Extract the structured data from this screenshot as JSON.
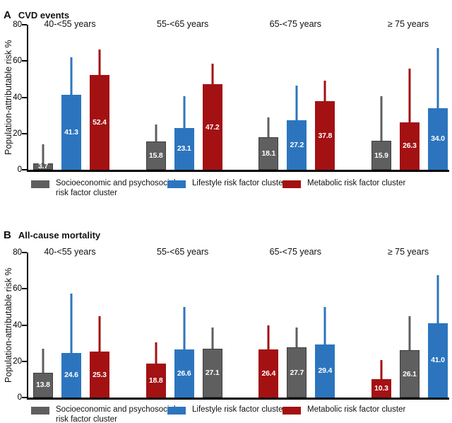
{
  "colors": {
    "gray": "#5f5f5f",
    "blue": "#2C75BE",
    "red": "#A31113",
    "axis": "#000000",
    "bar_label_text": "#ffffff"
  },
  "legend": [
    {
      "color_key": "gray",
      "line1": "Socioeconomic and psychosocial",
      "line2": "risk factor cluster",
      "label": "Socioeconomic and psychosocial risk factor cluster"
    },
    {
      "color_key": "blue",
      "line1": "Lifestyle risk factor cluster",
      "line2": "",
      "label": "Lifestyle risk factor cluster"
    },
    {
      "color_key": "red",
      "line1": "Metabolic risk factor cluster",
      "line2": "",
      "label": "Metabolic risk factor cluster"
    }
  ],
  "chart_data": [
    {
      "type": "bar",
      "panel_label": "A",
      "title": "CVD events",
      "ylabel": "Population-attributable risk %",
      "ylim": [
        0,
        80
      ],
      "yticks": [
        0,
        20,
        40,
        60,
        80
      ],
      "grid": false,
      "legend_position": "bottom",
      "error_bars": "upper whisker only; tops estimated from axis",
      "categories": [
        "40-<55 years",
        "55-<65 years",
        "65-<75 years",
        "≥ 75 years"
      ],
      "groups": [
        {
          "category": "40-<55 years",
          "bars": [
            {
              "cluster": "Socioeconomic and psychosocial risk factor cluster",
              "color_key": "gray",
              "value": 3.7,
              "label": "3.7",
              "err_top": 14
            },
            {
              "cluster": "Lifestyle risk factor cluster",
              "color_key": "blue",
              "value": 41.3,
              "label": "41.3",
              "err_top": 62
            },
            {
              "cluster": "Metabolic risk factor cluster",
              "color_key": "red",
              "value": 52.4,
              "label": "52.4",
              "err_top": 66.5
            }
          ]
        },
        {
          "category": "55-<65 years",
          "bars": [
            {
              "cluster": "Socioeconomic and psychosocial risk factor cluster",
              "color_key": "gray",
              "value": 15.8,
              "label": "15.8",
              "err_top": 25
            },
            {
              "cluster": "Lifestyle risk factor cluster",
              "color_key": "blue",
              "value": 23.1,
              "label": "23.1",
              "err_top": 40.5
            },
            {
              "cluster": "Metabolic risk factor cluster",
              "color_key": "red",
              "value": 47.2,
              "label": "47.2",
              "err_top": 58.5
            }
          ]
        },
        {
          "category": "65-<75 years",
          "bars": [
            {
              "cluster": "Socioeconomic and psychosocial risk factor cluster",
              "color_key": "gray",
              "value": 18.1,
              "label": "18.1",
              "err_top": 29
            },
            {
              "cluster": "Lifestyle risk factor cluster",
              "color_key": "blue",
              "value": 27.2,
              "label": "27.2",
              "err_top": 46.5
            },
            {
              "cluster": "Metabolic risk factor cluster",
              "color_key": "red",
              "value": 37.8,
              "label": "37.8",
              "err_top": 49
            }
          ]
        },
        {
          "category": "≥ 75 years",
          "bars": [
            {
              "cluster": "Socioeconomic and psychosocial risk factor cluster",
              "color_key": "gray",
              "value": 15.9,
              "label": "15.9",
              "err_top": 40.5
            },
            {
              "cluster": "Metabolic risk factor cluster",
              "color_key": "red",
              "value": 26.3,
              "label": "26.3",
              "err_top": 56
            },
            {
              "cluster": "Lifestyle risk factor cluster",
              "color_key": "blue",
              "value": 34.0,
              "label": "34.0",
              "err_top": 67
            }
          ]
        }
      ]
    },
    {
      "type": "bar",
      "panel_label": "B",
      "title": "All-cause mortality",
      "ylabel": "Population-attributable risk %",
      "ylim": [
        0,
        80
      ],
      "yticks": [
        0,
        20,
        40,
        60,
        80
      ],
      "grid": false,
      "legend_position": "bottom",
      "error_bars": "upper whisker only; tops estimated from axis",
      "categories": [
        "40-<55 years",
        "55-<65 years",
        "65-<75 years",
        "≥ 75 years"
      ],
      "groups": [
        {
          "category": "40-<55 years",
          "bars": [
            {
              "cluster": "Socioeconomic and psychosocial risk factor cluster",
              "color_key": "gray",
              "value": 13.8,
              "label": "13.8",
              "err_top": 27
            },
            {
              "cluster": "Lifestyle risk factor cluster",
              "color_key": "blue",
              "value": 24.6,
              "label": "24.6",
              "err_top": 57.5
            },
            {
              "cluster": "Metabolic risk factor cluster",
              "color_key": "red",
              "value": 25.3,
              "label": "25.3",
              "err_top": 45
            }
          ]
        },
        {
          "category": "55-<65 years",
          "bars": [
            {
              "cluster": "Metabolic risk factor cluster",
              "color_key": "red",
              "value": 18.8,
              "label": "18.8",
              "err_top": 30.5
            },
            {
              "cluster": "Lifestyle risk factor cluster",
              "color_key": "blue",
              "value": 26.6,
              "label": "26.6",
              "err_top": 50
            },
            {
              "cluster": "Socioeconomic and psychosocial risk factor cluster",
              "color_key": "gray",
              "value": 27.1,
              "label": "27.1",
              "err_top": 38.5
            }
          ]
        },
        {
          "category": "65-<75 years",
          "bars": [
            {
              "cluster": "Metabolic risk factor cluster",
              "color_key": "red",
              "value": 26.4,
              "label": "26.4",
              "err_top": 40
            },
            {
              "cluster": "Socioeconomic and psychosocial risk factor cluster",
              "color_key": "gray",
              "value": 27.7,
              "label": "27.7",
              "err_top": 38.5
            },
            {
              "cluster": "Lifestyle risk factor cluster",
              "color_key": "blue",
              "value": 29.4,
              "label": "29.4",
              "err_top": 50
            }
          ]
        },
        {
          "category": "≥ 75 years",
          "bars": [
            {
              "cluster": "Metabolic risk factor cluster",
              "color_key": "red",
              "value": 10.3,
              "label": "10.3",
              "err_top": 20.5
            },
            {
              "cluster": "Socioeconomic and psychosocial risk factor cluster",
              "color_key": "gray",
              "value": 26.1,
              "label": "26.1",
              "err_top": 45
            },
            {
              "cluster": "Lifestyle risk factor cluster",
              "color_key": "blue",
              "value": 41.0,
              "label": "41.0",
              "err_top": 67.5
            }
          ]
        }
      ]
    }
  ]
}
